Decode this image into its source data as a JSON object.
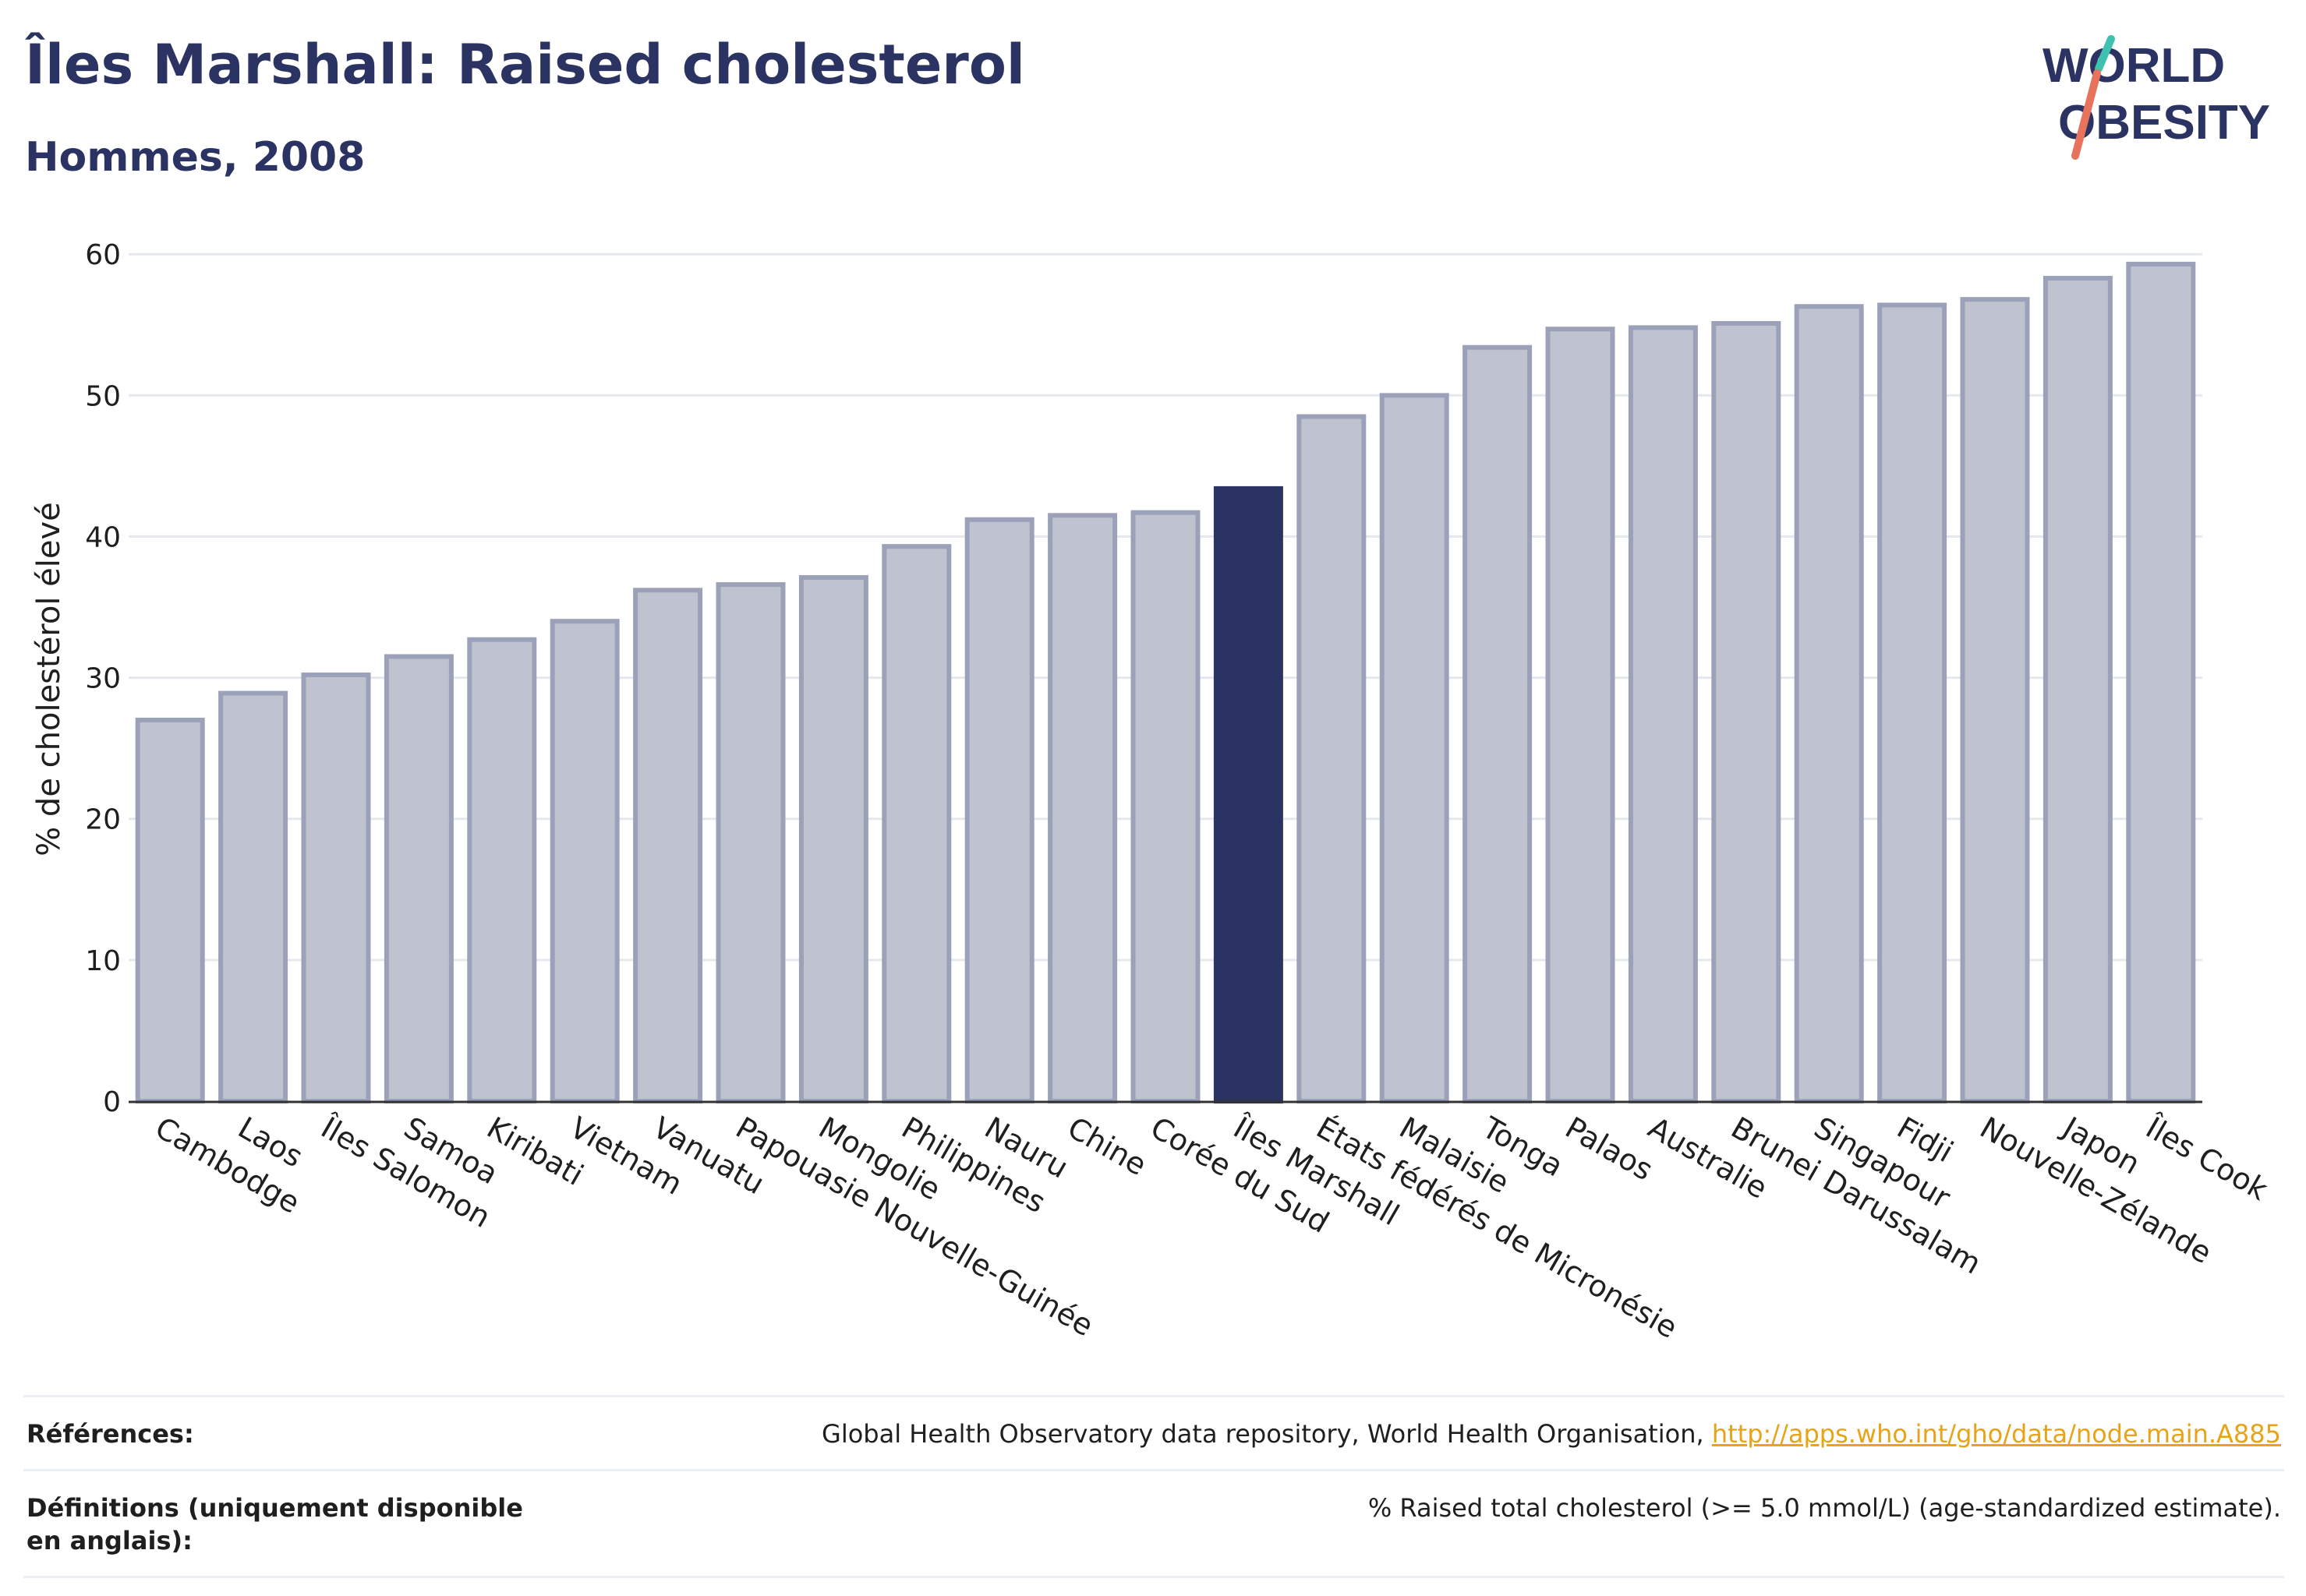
{
  "header": {
    "title": "Îles Marshall: Raised cholesterol",
    "subtitle": "Hommes, 2008"
  },
  "logo": {
    "line1": "WORLD",
    "line2": "OBESITY"
  },
  "colors": {
    "bar": "#bfc2cf",
    "bar_border": "#9ba1b8",
    "highlight": "#2b3362",
    "text": "#2b3362",
    "grid": "#e6e8ef",
    "link": "#e8a317",
    "logo_teal": "#3fc1b0",
    "logo_coral": "#e8735d"
  },
  "chart_data": {
    "type": "bar",
    "title": "",
    "xlabel": "",
    "ylabel": "% de cholestérol élevé",
    "ylim": [
      0,
      62
    ],
    "yticks": [
      0,
      10,
      20,
      30,
      40,
      50,
      60
    ],
    "grid": true,
    "highlight": "Îles Marshall",
    "categories": [
      "Cambodge",
      "Laos",
      "Îles Salomon",
      "Samoa",
      "Kiribati",
      "Vietnam",
      "Vanuatu",
      "Papouasie Nouvelle-Guinée",
      "Mongolie",
      "Philippines",
      "Nauru",
      "Chine",
      "Corée du Sud",
      "Îles Marshall",
      "États fédérés de Micronésie",
      "Malaisie",
      "Tonga",
      "Palaos",
      "Australie",
      "Brunei Darussalam",
      "Singapour",
      "Fidji",
      "Nouvelle-Zélande",
      "Japon",
      "Îles Cook"
    ],
    "values": [
      27.0,
      28.9,
      30.2,
      31.5,
      32.7,
      34.0,
      36.2,
      36.6,
      37.1,
      39.3,
      41.2,
      41.5,
      41.7,
      43.4,
      48.5,
      50.0,
      53.4,
      54.7,
      54.8,
      55.1,
      56.3,
      56.4,
      56.8,
      58.3,
      59.3
    ]
  },
  "references": {
    "label": "Références:",
    "text": "Global Health Observatory data repository, World Health Organisation, ",
    "link": "http://apps.who.int/gho/data/node.main.A885"
  },
  "definitions": {
    "label": "Définitions (uniquement disponible en anglais):",
    "text": "% Raised total cholesterol (>= 5.0 mmol/L) (age-standardized estimate)."
  }
}
